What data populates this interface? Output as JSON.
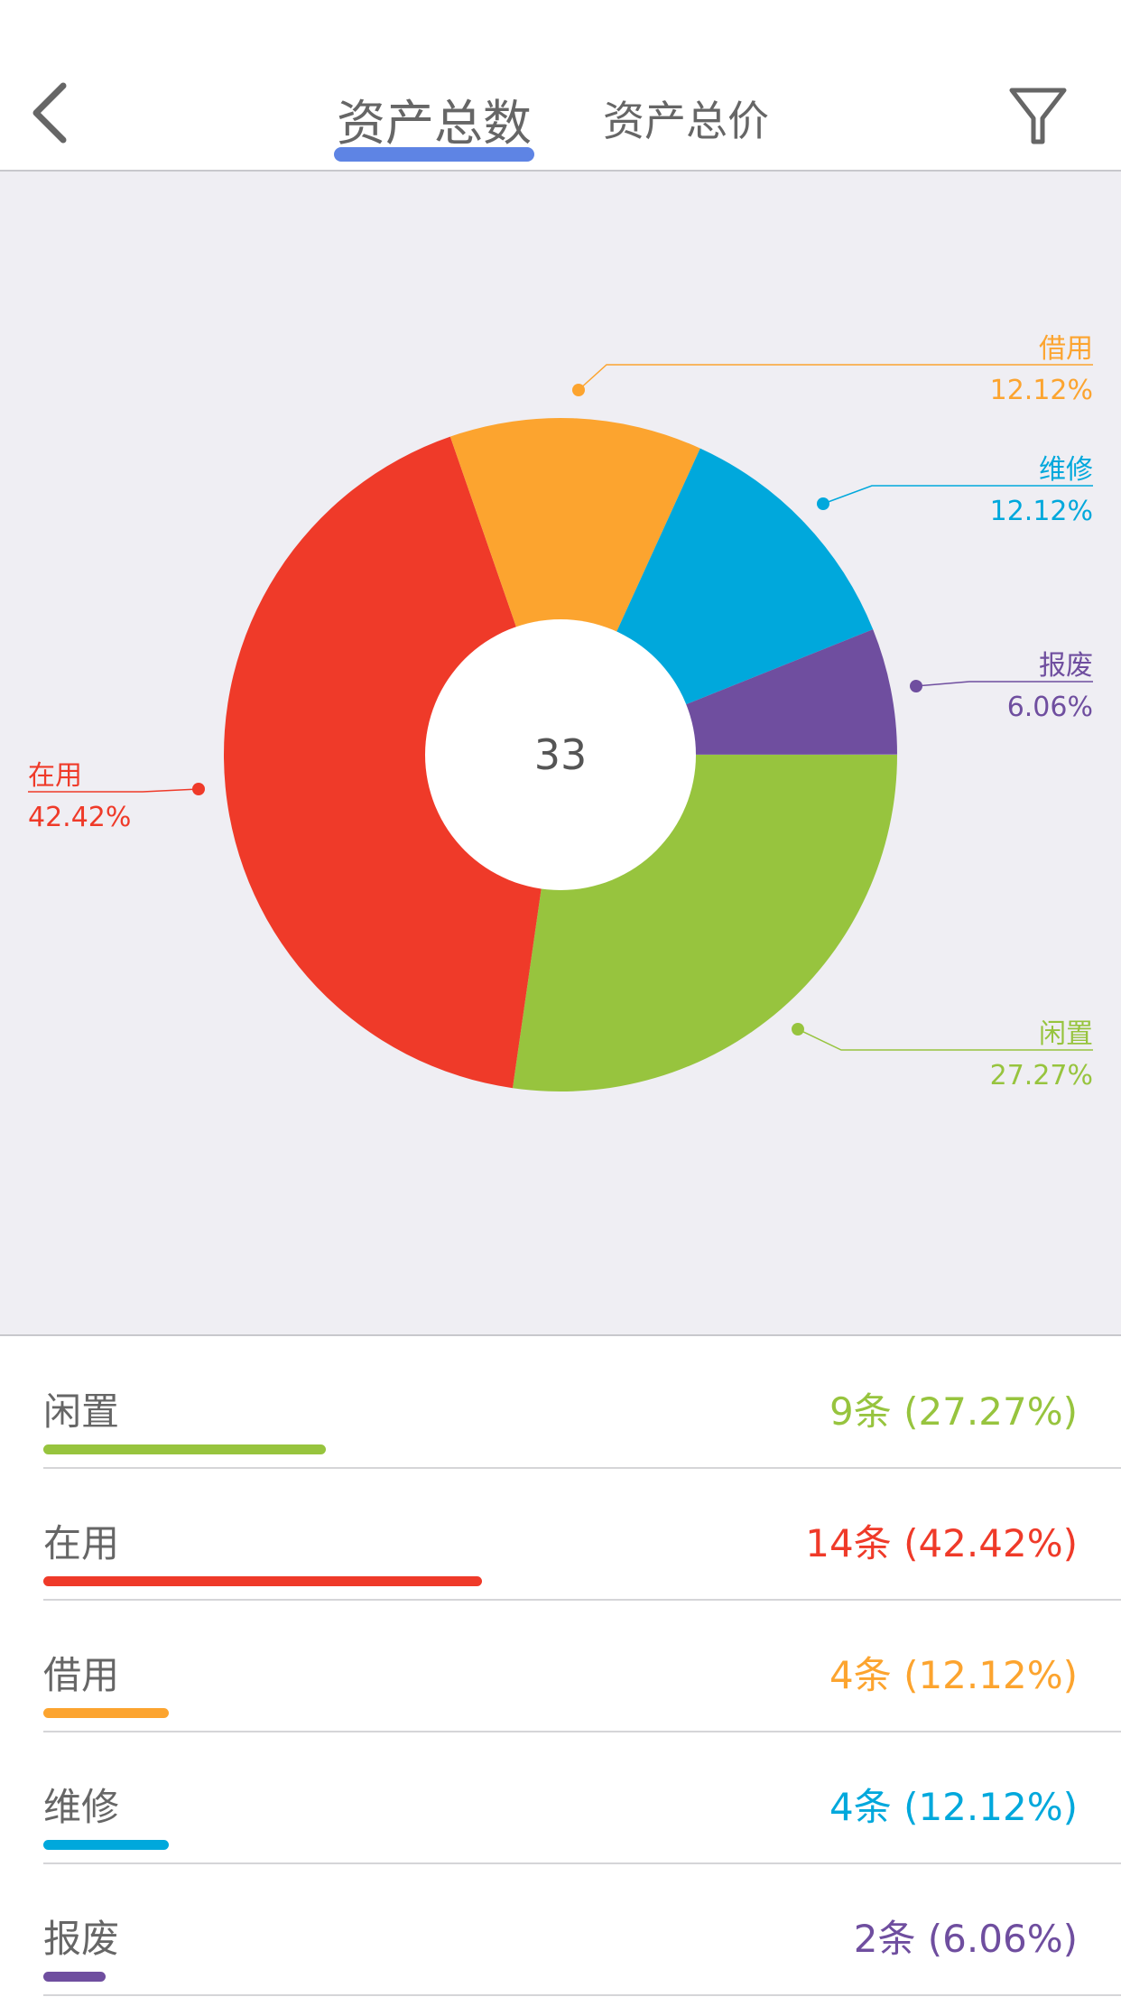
{
  "header": {
    "tabs": [
      {
        "label": "资产总数",
        "active": true
      },
      {
        "label": "资产总价",
        "active": false
      }
    ],
    "back_icon": "chevron-left-icon",
    "filter_icon": "filter-icon",
    "accent": "#5e84e4"
  },
  "chart_data": {
    "type": "pie",
    "donut": true,
    "center_label": "33",
    "slices": [
      {
        "name": "闲置",
        "count": 9,
        "percent": "27.27%",
        "value": 27.27,
        "color": "#97c43e"
      },
      {
        "name": "在用",
        "count": 14,
        "percent": "42.42%",
        "value": 42.42,
        "color": "#ef3a29"
      },
      {
        "name": "借用",
        "count": 4,
        "percent": "12.12%",
        "value": 12.12,
        "color": "#fca42f"
      },
      {
        "name": "维修",
        "count": 4,
        "percent": "12.12%",
        "value": 12.12,
        "color": "#00a8dc"
      },
      {
        "name": "报废",
        "count": 2,
        "percent": "6.06%",
        "value": 6.06,
        "color": "#6f4e9f"
      }
    ]
  },
  "list": [
    {
      "label": "闲置",
      "value": "9条 (27.27%)",
      "pct": 27.27,
      "color": "#97c43e"
    },
    {
      "label": "在用",
      "value": "14条 (42.42%)",
      "pct": 42.42,
      "color": "#ef3a29"
    },
    {
      "label": "借用",
      "value": "4条 (12.12%)",
      "pct": 12.12,
      "color": "#fca42f"
    },
    {
      "label": "维修",
      "value": "4条 (12.12%)",
      "pct": 12.12,
      "color": "#00a8dc"
    },
    {
      "label": "报废",
      "value": "2条 (6.06%)",
      "pct": 6.06,
      "color": "#6f4e9f"
    }
  ]
}
